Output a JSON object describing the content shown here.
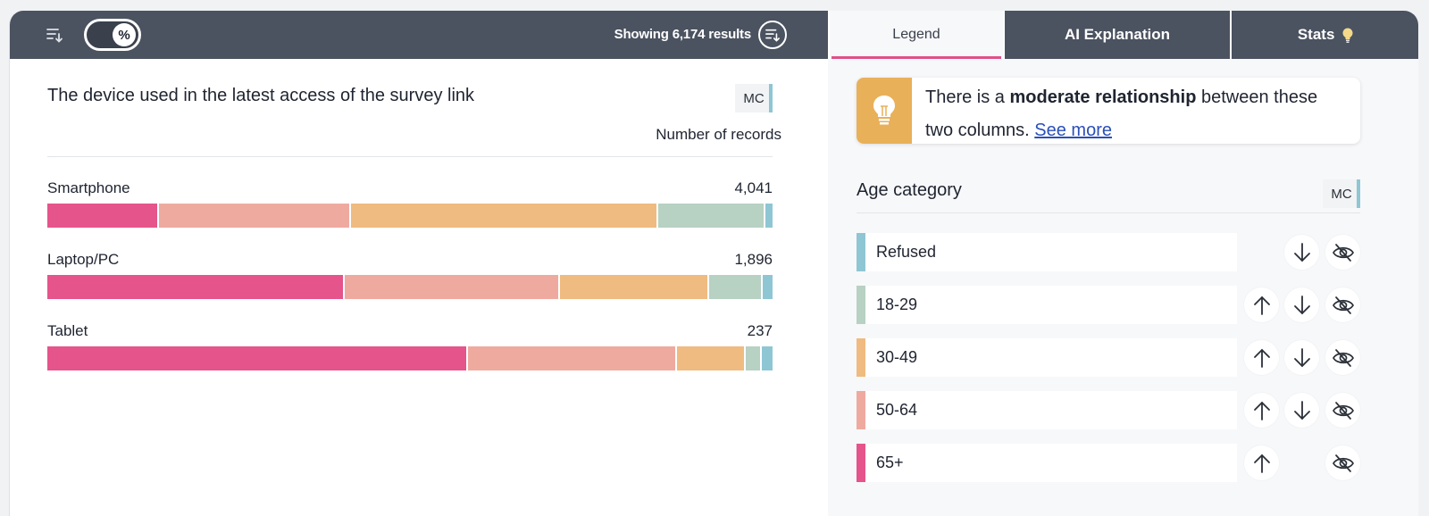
{
  "toolbar": {
    "sort_icon": "sort-descending-icon",
    "percent_toggle": {
      "label": "%",
      "on": true
    },
    "results_text": "Showing 6,174 results",
    "results_sort_icon": "sort-descending-circle-icon"
  },
  "tabs": [
    {
      "label": "Legend",
      "active": true
    },
    {
      "label": "AI Explanation",
      "active": false
    },
    {
      "label": "Stats",
      "active": false,
      "icon": "lightbulb-icon"
    }
  ],
  "chart": {
    "title": "The device used in the latest access of the survey link",
    "badge": "MC",
    "measure_label": "Number of records"
  },
  "chart_data": {
    "type": "bar",
    "orientation": "horizontal-stacked-100",
    "title": "The device used in the latest access of the survey link",
    "xlabel": "Number of records",
    "categories": [
      "Smartphone",
      "Laptop/PC",
      "Tablet"
    ],
    "totals": [
      4041,
      1896,
      237
    ],
    "totals_display": [
      "4,041",
      "1,896",
      "237"
    ],
    "series_unit": "percent of row",
    "series": [
      {
        "name": "65+",
        "color": "#e5548a",
        "values": [
          15.4,
          41.0,
          58.0
        ]
      },
      {
        "name": "50-64",
        "color": "#efaaa0",
        "values": [
          26.5,
          29.7,
          28.8
        ]
      },
      {
        "name": "30-49",
        "color": "#efbb80",
        "values": [
          42.3,
          20.6,
          9.5
        ]
      },
      {
        "name": "18-29",
        "color": "#b7d1c3",
        "values": [
          14.8,
          7.3,
          2.2
        ]
      },
      {
        "name": "Refused",
        "color": "#8fc6d4",
        "values": [
          1.0,
          1.4,
          1.5
        ]
      }
    ],
    "legend_position": "right-panel"
  },
  "insight": {
    "icon": "lightbulb-icon",
    "prefix": "There is a ",
    "emphasis": "moderate relationship",
    "suffix": " between these two columns. ",
    "link": "See more"
  },
  "legend": {
    "title": "Age category",
    "badge": "MC",
    "items": [
      {
        "label": "Refused",
        "color": "#8fc6d4",
        "can_up": false,
        "can_down": true
      },
      {
        "label": "18-29",
        "color": "#b7d1c3",
        "can_up": true,
        "can_down": true
      },
      {
        "label": "30-49",
        "color": "#efbb80",
        "can_up": true,
        "can_down": true
      },
      {
        "label": "50-64",
        "color": "#efaaa0",
        "can_up": true,
        "can_down": true
      },
      {
        "label": "65+",
        "color": "#e5548a",
        "can_up": true,
        "can_down": false
      }
    ]
  }
}
